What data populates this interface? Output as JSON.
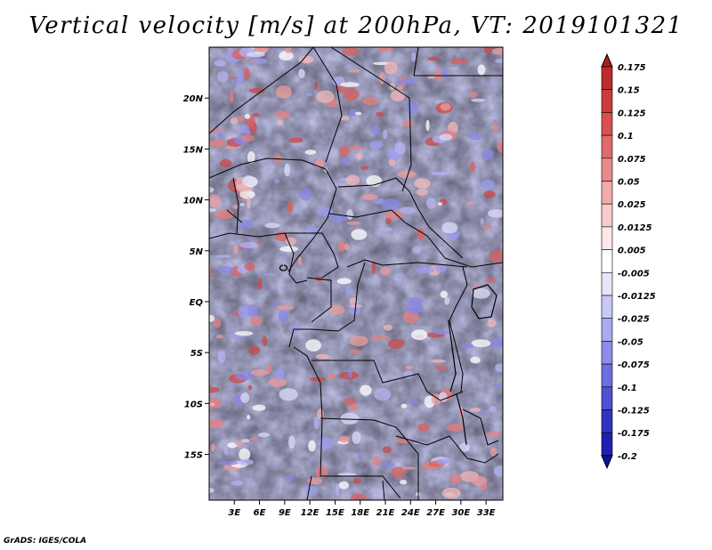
{
  "title": "Vertical velocity [m/s] at 200hPa, VT: 2019101321",
  "credit": "GrADS: IGES/COLA",
  "map": {
    "lon_range": [
      0,
      35
    ],
    "lat_range": [
      -19.5,
      25
    ],
    "lat_labels": [
      "20N",
      "15N",
      "10N",
      "5N",
      "EQ",
      "5S",
      "10S",
      "15S"
    ],
    "lat_values": [
      20,
      15,
      10,
      5,
      0,
      -5,
      -10,
      -15
    ],
    "lon_labels": [
      "3E",
      "6E",
      "9E",
      "12E",
      "15E",
      "18E",
      "21E",
      "24E",
      "27E",
      "30E",
      "33E"
    ],
    "lon_values": [
      3,
      6,
      9,
      12,
      15,
      18,
      21,
      24,
      27,
      30,
      33
    ]
  },
  "colorbar": {
    "labels": [
      "0.175",
      "0.15",
      "0.125",
      "0.1",
      "0.075",
      "0.05",
      "0.025",
      "0.0125",
      "0.005",
      "-0.005",
      "-0.0125",
      "-0.025",
      "-0.05",
      "-0.075",
      "-0.1",
      "-0.125",
      "-0.175",
      "-0.2"
    ],
    "colors": [
      "#aa1f1f",
      "#bd2b2b",
      "#cc3b3b",
      "#d85050",
      "#e06a6a",
      "#e88a8a",
      "#f0aaaa",
      "#f7cccc",
      "#fce8e8",
      "#ffffff",
      "#e6e6fa",
      "#c8c8f5",
      "#aaaaf0",
      "#8c8ceb",
      "#6e6ee0",
      "#5050d0",
      "#3232c0",
      "#2020b0",
      "#1010a0"
    ]
  }
}
